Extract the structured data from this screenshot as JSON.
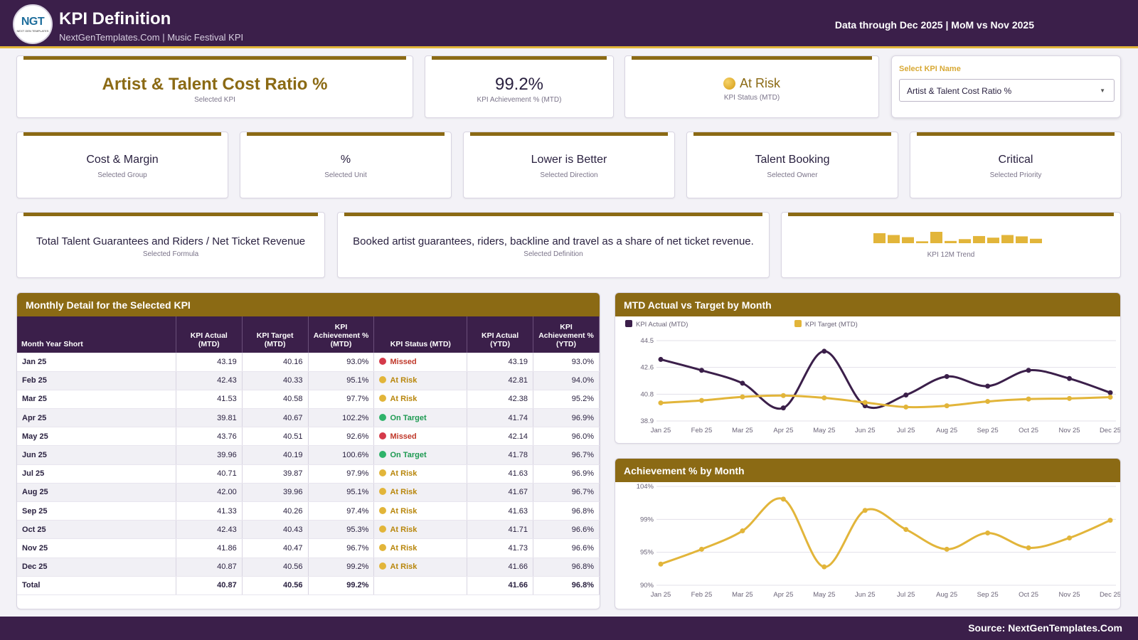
{
  "header": {
    "logo_text": "NGT",
    "logo_sub": "NEXT GEN TEMPLATES",
    "title": "KPI Definition",
    "subtitle": "NextGenTemplates.Com | Music Festival KPI",
    "data_through": "Data through Dec 2025 | MoM vs Nov 2025"
  },
  "top_cards": {
    "kpi": {
      "value": "Artist & Talent Cost Ratio %",
      "label": "Selected KPI"
    },
    "achievement": {
      "value": "99.2%",
      "label": "KPI Achievement % (MTD)"
    },
    "status": {
      "value": "At Risk",
      "label": "KPI Status (MTD)"
    }
  },
  "selector": {
    "label": "Select KPI Name",
    "value": "Artist & Talent Cost Ratio %",
    "caret": "▼"
  },
  "attribute_cards": [
    {
      "value": "Cost & Margin",
      "label": "Selected Group"
    },
    {
      "value": "%",
      "label": "Selected Unit"
    },
    {
      "value": "Lower is Better",
      "label": "Selected Direction"
    },
    {
      "value": "Talent Booking",
      "label": "Selected Owner"
    },
    {
      "value": "Critical",
      "label": "Selected Priority"
    }
  ],
  "formula_card": {
    "value": "Total Talent Guarantees and Riders / Net Ticket Revenue",
    "label": "Selected Formula"
  },
  "definition_card": {
    "value": "Booked artist guarantees, riders, backline and travel as a share of net ticket revenue.",
    "label": "Selected Definition"
  },
  "trend_card": {
    "label": "KPI 12M Trend",
    "bar_color": "#e2b53a"
  },
  "table": {
    "title": "Monthly Detail for the Selected KPI",
    "columns": [
      "Month Year Short",
      "KPI Actual (MTD)",
      "KPI Target (MTD)",
      "KPI Achievement % (MTD)",
      "KPI Status (MTD)",
      "KPI Actual (YTD)",
      "KPI Achievement % (YTD)"
    ],
    "rows": [
      {
        "month": "Jan 25",
        "actual": "43.19",
        "target": "40.16",
        "ach": "93.0%",
        "status": "Missed",
        "ytd": "43.19",
        "ach_ytd": "93.0%"
      },
      {
        "month": "Feb 25",
        "actual": "42.43",
        "target": "40.33",
        "ach": "95.1%",
        "status": "At Risk",
        "ytd": "42.81",
        "ach_ytd": "94.0%"
      },
      {
        "month": "Mar 25",
        "actual": "41.53",
        "target": "40.58",
        "ach": "97.7%",
        "status": "At Risk",
        "ytd": "42.38",
        "ach_ytd": "95.2%"
      },
      {
        "month": "Apr 25",
        "actual": "39.81",
        "target": "40.67",
        "ach": "102.2%",
        "status": "On Target",
        "ytd": "41.74",
        "ach_ytd": "96.9%"
      },
      {
        "month": "May 25",
        "actual": "43.76",
        "target": "40.51",
        "ach": "92.6%",
        "status": "Missed",
        "ytd": "42.14",
        "ach_ytd": "96.0%"
      },
      {
        "month": "Jun 25",
        "actual": "39.96",
        "target": "40.19",
        "ach": "100.6%",
        "status": "On Target",
        "ytd": "41.78",
        "ach_ytd": "96.7%"
      },
      {
        "month": "Jul 25",
        "actual": "40.71",
        "target": "39.87",
        "ach": "97.9%",
        "status": "At Risk",
        "ytd": "41.63",
        "ach_ytd": "96.9%"
      },
      {
        "month": "Aug 25",
        "actual": "42.00",
        "target": "39.96",
        "ach": "95.1%",
        "status": "At Risk",
        "ytd": "41.67",
        "ach_ytd": "96.7%"
      },
      {
        "month": "Sep 25",
        "actual": "41.33",
        "target": "40.26",
        "ach": "97.4%",
        "status": "At Risk",
        "ytd": "41.63",
        "ach_ytd": "96.8%"
      },
      {
        "month": "Oct 25",
        "actual": "42.43",
        "target": "40.43",
        "ach": "95.3%",
        "status": "At Risk",
        "ytd": "41.71",
        "ach_ytd": "96.6%"
      },
      {
        "month": "Nov 25",
        "actual": "41.86",
        "target": "40.47",
        "ach": "96.7%",
        "status": "At Risk",
        "ytd": "41.73",
        "ach_ytd": "96.6%"
      },
      {
        "month": "Dec 25",
        "actual": "40.87",
        "target": "40.56",
        "ach": "99.2%",
        "status": "At Risk",
        "ytd": "41.66",
        "ach_ytd": "96.8%"
      }
    ],
    "total": {
      "month": "Total",
      "actual": "40.87",
      "target": "40.56",
      "ach": "99.2%",
      "status": "",
      "ytd": "41.66",
      "ach_ytd": "96.8%"
    },
    "status_colors": {
      "Missed": "#d43a4a",
      "At Risk": "#e2b53a",
      "On Target": "#2fb36a"
    },
    "status_text_colors": {
      "Missed": "#c0392b",
      "At Risk": "#b8860b",
      "On Target": "#1e9a52"
    }
  },
  "chart_data": [
    {
      "type": "line",
      "title": "MTD Actual vs Target by Month",
      "categories": [
        "Jan 25",
        "Feb 25",
        "Mar 25",
        "Apr 25",
        "May 25",
        "Jun 25",
        "Jul 25",
        "Aug 25",
        "Sep 25",
        "Oct 25",
        "Nov 25",
        "Dec 25"
      ],
      "series": [
        {
          "name": "KPI Actual (MTD)",
          "color": "#3b1f4a",
          "values": [
            43.19,
            42.43,
            41.53,
            39.81,
            43.76,
            39.96,
            40.71,
            42.0,
            41.33,
            42.43,
            41.86,
            40.87
          ]
        },
        {
          "name": "KPI Target (MTD)",
          "color": "#e2b53a",
          "values": [
            40.16,
            40.33,
            40.58,
            40.67,
            40.51,
            40.19,
            39.87,
            39.96,
            40.26,
            40.43,
            40.47,
            40.56
          ]
        }
      ],
      "yticks": [
        "44.5",
        "42.6",
        "40.8",
        "38.9"
      ],
      "ylim": [
        38.9,
        44.5
      ],
      "grid": true,
      "legend": "top-left"
    },
    {
      "type": "line",
      "title": "Achievement % by Month",
      "categories": [
        "Jan 25",
        "Feb 25",
        "Mar 25",
        "Apr 25",
        "May 25",
        "Jun 25",
        "Jul 25",
        "Aug 25",
        "Sep 25",
        "Oct 25",
        "Nov 25",
        "Dec 25"
      ],
      "series": [
        {
          "color": "#e2b53a",
          "values": [
            93.0,
            95.1,
            97.7,
            102.2,
            92.6,
            100.6,
            97.9,
            95.1,
            97.4,
            95.3,
            96.7,
            99.2
          ]
        }
      ],
      "yticks": [
        "104%",
        "99%",
        "95%",
        "90%"
      ],
      "ylim": [
        90,
        104
      ],
      "grid": true
    }
  ],
  "trend_values": [
    43.19,
    42.43,
    41.53,
    39.81,
    43.76,
    39.96,
    40.71,
    42.0,
    41.33,
    42.43,
    41.86,
    40.87
  ],
  "footer": {
    "source": "Source: NextGenTemplates.Com"
  }
}
